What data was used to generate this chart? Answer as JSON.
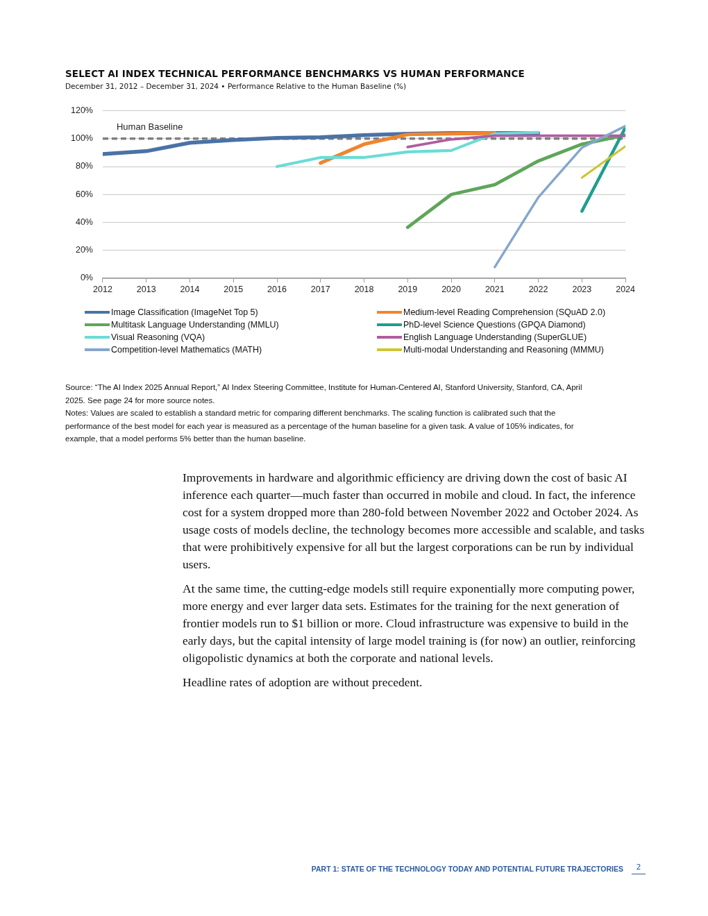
{
  "chart_data": {
    "type": "line",
    "title": "SELECT AI INDEX TECHNICAL PERFORMANCE BENCHMARKS VS HUMAN PERFORMANCE",
    "subtitle": "December 31, 2012 – December 31, 2024 • Performance Relative to the Human Baseline (%)",
    "x": [
      2012,
      2013,
      2014,
      2015,
      2016,
      2017,
      2018,
      2019,
      2020,
      2021,
      2022,
      2023,
      2024
    ],
    "xlim": [
      2012,
      2024
    ],
    "xticks": [
      2012,
      2013,
      2014,
      2015,
      2016,
      2017,
      2018,
      2019,
      2020,
      2021,
      2022,
      2023,
      2024
    ],
    "ylim": [
      0,
      120
    ],
    "yticks": [
      {
        "value": 0,
        "label": "0%"
      },
      {
        "value": 20,
        "label": "20%"
      },
      {
        "value": 40,
        "label": "40%"
      },
      {
        "value": 60,
        "label": "60%"
      },
      {
        "value": 80,
        "label": "80%"
      },
      {
        "value": 100,
        "label": "100%"
      },
      {
        "value": 120,
        "label": "120%"
      }
    ],
    "grid": "y",
    "legend": "bottom",
    "marker": "none",
    "line_style": "solid",
    "series": [
      {
        "name": "Image Classification (ImageNet Top 5)",
        "color": "#4a72a6",
        "values": [
          89,
          91,
          97,
          99,
          100.5,
          101,
          102.5,
          103.5,
          104,
          104,
          104,
          null,
          null
        ]
      },
      {
        "name": "Medium-level Reading Comprehension (SQuAD 2.0)",
        "color": "#f0852d",
        "values": [
          null,
          null,
          null,
          null,
          null,
          82.5,
          96,
          103,
          103.5,
          104,
          null,
          null,
          null
        ]
      },
      {
        "name": "Multitask Language Understanding (MMLU)",
        "color": "#5fa55a",
        "values": [
          null,
          null,
          null,
          null,
          null,
          null,
          null,
          36.5,
          60,
          67,
          84,
          96,
          102.5
        ]
      },
      {
        "name": "PhD-level Science Questions (GPQA Diamond)",
        "color": "#1f9e8f",
        "values": [
          null,
          null,
          null,
          null,
          null,
          null,
          null,
          null,
          null,
          null,
          null,
          48,
          108
        ]
      },
      {
        "name": "Visual Reasoning (VQA)",
        "color": "#6adcd6",
        "values": [
          null,
          null,
          null,
          null,
          80,
          86.5,
          86.5,
          90.5,
          91.5,
          103.5,
          104.5,
          null,
          null
        ]
      },
      {
        "name": "English Language Understanding (SuperGLUE)",
        "color": "#b05c9f",
        "values": [
          null,
          null,
          null,
          null,
          null,
          null,
          null,
          94,
          99.5,
          102,
          102,
          102,
          102
        ]
      },
      {
        "name": "Competition-level Mathematics (MATH)",
        "color": "#84a6cc",
        "values": [
          null,
          null,
          null,
          null,
          null,
          null,
          null,
          null,
          null,
          8,
          58,
          93.5,
          109
        ]
      },
      {
        "name": "Multi-modal Understanding and Reasoning (MMMU)",
        "color": "#cfc532",
        "values": [
          null,
          null,
          null,
          null,
          null,
          null,
          null,
          null,
          null,
          null,
          null,
          72,
          94.5
        ]
      }
    ],
    "ref_lines": [
      {
        "axis": "y",
        "value": 100,
        "label": "Human Baseline",
        "color": "#808080",
        "line_style": "dashed"
      }
    ],
    "annotations": [
      "Source: “The AI Index 2025 Annual Report,” AI Index Steering Committee, Institute for Human-Centered AI, Stanford University, Stanford, CA, April 2025. See page 24 for more source notes.",
      "Notes: Values are scaled to establish a standard metric for comparing different benchmarks. The scaling function is calibrated such that the performance of the best model for each year is measured as a percentage of the human baseline for a given task. A value of 105% indicates, for example, that a model performs 5% better than the human baseline.",
      "Improvements in hardware and algorithmic efficiency are driving down the cost of basic AI inference each quarter—much faster than occurred in mobile and cloud. In fact, the inference cost for a system dropped more than 280-fold between November 2022 and October 2024. As usage costs of models decline, the technology becomes more accessible and scalable, and tasks that were prohibitively expensive for all but the largest corporations can be run by individual users.",
      "At the same time, the cutting-edge models still require exponentially more computing power, more energy and ever larger data sets. Estimates for the training for the next generation of frontier models run to $1 billion or more. Cloud infrastructure was expensive to build in the early days, but the capital intensity of large model training is (for now) an outlier, reinforcing oligopolistic dynamics at both the corporate and national levels.",
      "Headline rates of adoption are without precedent.",
      "PART 1: STATE OF THE TECHNOLOGY TODAY AND POTENTIAL FUTURE TRAJECTORIES",
      "2"
    ]
  }
}
